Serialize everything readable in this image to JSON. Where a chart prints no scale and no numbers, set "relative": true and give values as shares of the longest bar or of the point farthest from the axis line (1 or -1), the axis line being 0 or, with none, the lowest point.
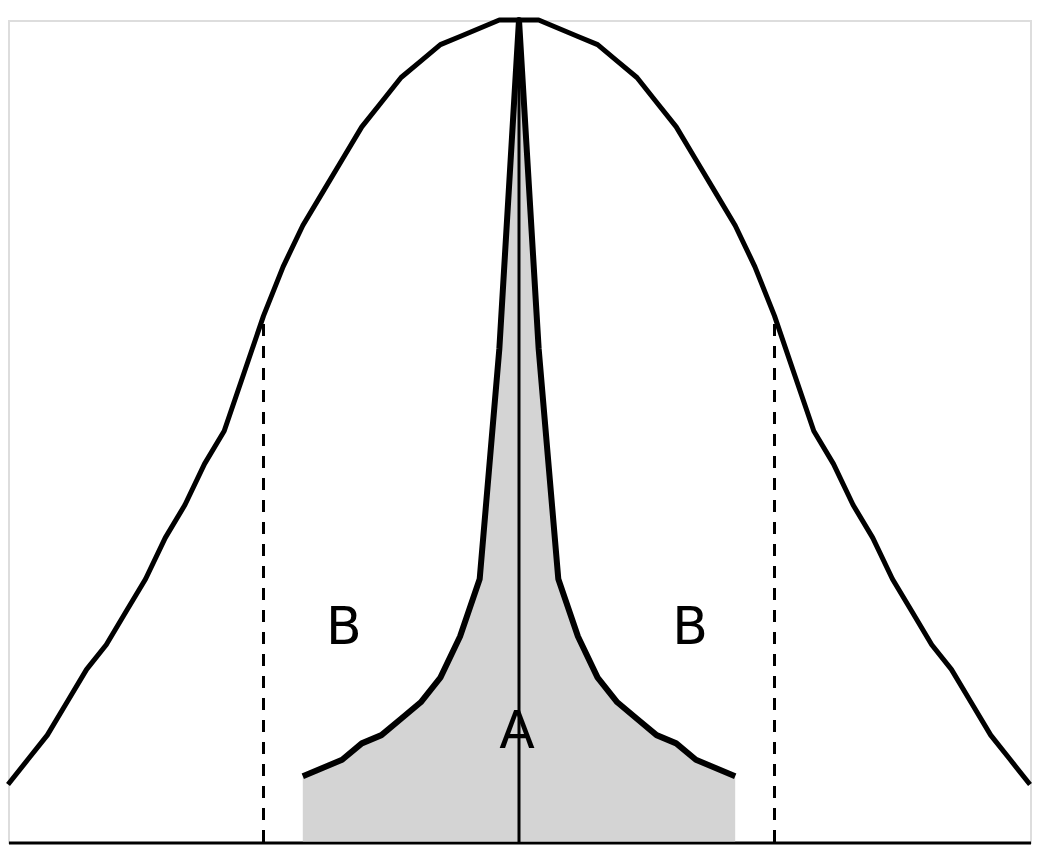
{
  "chart_data": {
    "type": "line",
    "relative": true,
    "categories": [
      null,
      null,
      null,
      null,
      null,
      null,
      null,
      null,
      null,
      null,
      null,
      null,
      null,
      null,
      null,
      null,
      null,
      null,
      null,
      null,
      null,
      null,
      null,
      null,
      null,
      null,
      null,
      null,
      null,
      null,
      null,
      null,
      null,
      null,
      null,
      null,
      null,
      null,
      null,
      null,
      null,
      null,
      null,
      null,
      null,
      null,
      null,
      null,
      null,
      null,
      null,
      null,
      null
    ],
    "series": [
      {
        "type": "line",
        "color": "#000000",
        "values": [
          0.07,
          0.1,
          0.13,
          0.17,
          0.21,
          0.24,
          0.28,
          0.32,
          0.37,
          0.41,
          0.46,
          0.5,
          0.57,
          0.64,
          0.7,
          0.75,
          0.79,
          0.83,
          0.87,
          0.9,
          0.93,
          0.95,
          0.97,
          0.98,
          0.99,
          1.0,
          1.0,
          1.0,
          0.99,
          0.98,
          0.97,
          0.95,
          0.93,
          0.9,
          0.87,
          0.83,
          0.79,
          0.75,
          0.7,
          0.64,
          0.57,
          0.5,
          0.46,
          0.41,
          0.37,
          0.32,
          0.28,
          0.24,
          0.21,
          0.17,
          0.13,
          0.1,
          0.07
        ]
      },
      {
        "type": "area",
        "color": "#000000",
        "values": [
          null,
          null,
          null,
          null,
          null,
          null,
          null,
          null,
          null,
          null,
          null,
          null,
          null,
          null,
          null,
          0.08,
          0.09,
          0.1,
          0.12,
          0.13,
          0.15,
          0.17,
          0.2,
          0.25,
          0.32,
          0.6,
          1.0,
          0.6,
          0.32,
          0.25,
          0.2,
          0.17,
          0.15,
          0.13,
          0.12,
          0.1,
          0.09,
          0.08,
          null,
          null,
          null,
          null,
          null,
          null,
          null,
          null,
          null,
          null,
          null,
          null,
          null,
          null,
          null
        ]
      }
    ],
    "annotations": [
      "A",
      "B",
      "B"
    ]
  }
}
